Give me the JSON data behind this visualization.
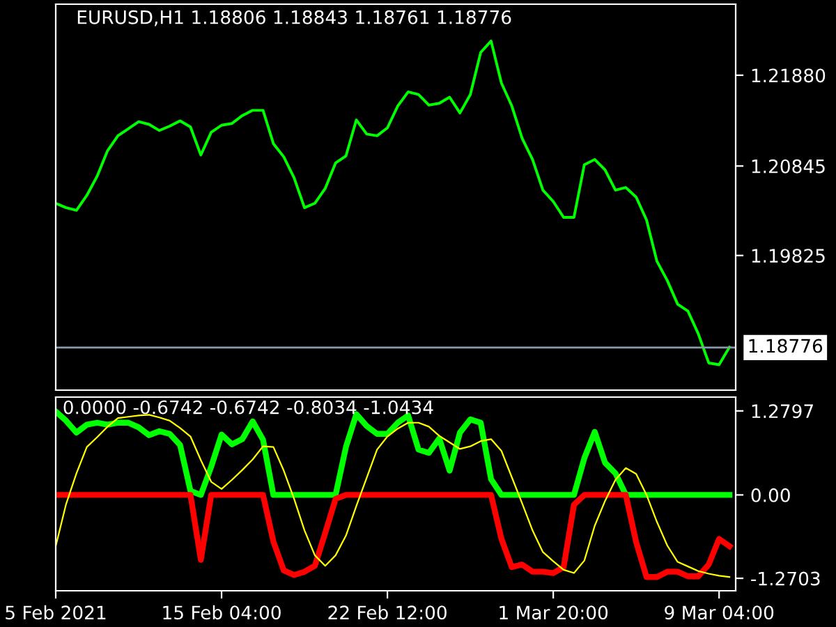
{
  "chart_data": [
    {
      "type": "line",
      "title": "EURUSD,H1 1.18806 1.18843 1.18761 1.18776",
      "tick_labels": "y",
      "grid": false,
      "categories": [
        null,
        null,
        null,
        null,
        null,
        null,
        null,
        null,
        null,
        null,
        null,
        null,
        null,
        null,
        null,
        null,
        null,
        null,
        null,
        null,
        null,
        null,
        null,
        null,
        null,
        null,
        null,
        null,
        null,
        null,
        null,
        null,
        null,
        null,
        null,
        null,
        null,
        null,
        null,
        null,
        null,
        null,
        null,
        null,
        null,
        null,
        null,
        null,
        null,
        null,
        null,
        null,
        null,
        null,
        null,
        null,
        null,
        null,
        null,
        null,
        null,
        null,
        null,
        null,
        null,
        null
      ],
      "ylim": [
        1.1829,
        1.2269
      ],
      "yticks": [
        {
          "value": 1.2188,
          "label": "1.21880"
        },
        {
          "value": 1.20845,
          "label": "1.20845"
        },
        {
          "value": 1.19825,
          "label": "1.19825"
        }
      ],
      "ref_lines": [
        {
          "axis": "y",
          "value": 1.18776,
          "label": "1.18776",
          "color": "#8899aa"
        }
      ],
      "series": [
        {
          "color": "#00ff00",
          "values": [
            1.2042,
            1.2037,
            1.2034,
            1.2051,
            1.2073,
            1.2102,
            1.2119,
            1.2127,
            1.2135,
            1.2132,
            1.2125,
            1.213,
            1.2136,
            1.2129,
            1.2097,
            1.2123,
            1.2131,
            1.2133,
            1.2142,
            1.2148,
            1.2148,
            1.211,
            1.2095,
            1.2071,
            1.2037,
            1.2042,
            1.2059,
            1.2088,
            1.2096,
            1.2137,
            1.2121,
            1.2119,
            1.2128,
            1.2153,
            1.2169,
            1.2166,
            1.2154,
            1.2156,
            1.2163,
            1.2145,
            1.2166,
            1.2214,
            1.2227,
            1.2179,
            1.2153,
            1.2116,
            1.2092,
            1.2057,
            1.2044,
            1.2026,
            1.2026,
            1.2086,
            1.2092,
            1.208,
            1.2057,
            1.206,
            1.2049,
            1.2023,
            1.1976,
            1.1954,
            1.1927,
            1.1919,
            1.1893,
            1.186,
            1.1858,
            1.1878
          ]
        }
      ]
    },
    {
      "type": "line",
      "title": "0.0000 -0.6742 -0.6742 -0.8034 -1.0434",
      "grid": false,
      "categories": [
        "5 Feb 2021",
        null,
        null,
        null,
        null,
        null,
        null,
        null,
        null,
        null,
        null,
        null,
        null,
        null,
        null,
        null,
        "15 Feb 04:00",
        null,
        null,
        null,
        null,
        null,
        null,
        null,
        null,
        null,
        null,
        null,
        null,
        null,
        null,
        null,
        "22 Feb 12:00",
        null,
        null,
        null,
        null,
        null,
        null,
        null,
        null,
        null,
        null,
        null,
        null,
        null,
        null,
        null,
        "1 Mar 20:00",
        null,
        null,
        null,
        null,
        null,
        null,
        null,
        null,
        null,
        null,
        null,
        null,
        null,
        null,
        null,
        "9 Mar 04:00",
        null
      ],
      "ylim": [
        -1.46,
        1.49
      ],
      "yticks": [
        {
          "value": 1.2797,
          "label": "1.2797"
        },
        {
          "value": 0,
          "label": "0.00"
        },
        {
          "value": -1.2703,
          "label": "-1.2703"
        }
      ],
      "series": [
        {
          "color": "#00ff00",
          "values": [
            1.27,
            1.13,
            0.95,
            1.07,
            1.1,
            1.07,
            1.1,
            1.1,
            1.03,
            0.91,
            0.97,
            0.93,
            0.76,
            0.06,
            0,
            0.43,
            0.92,
            0.77,
            0.85,
            1.12,
            0.84,
            0,
            0,
            0,
            0,
            0,
            0,
            0,
            0.73,
            1.23,
            1.05,
            0.93,
            0.93,
            1.1,
            1.21,
            0.69,
            0.64,
            0.86,
            0.37,
            0.95,
            1.15,
            1.1,
            0.24,
            0,
            0,
            0,
            0,
            0,
            0,
            0,
            0,
            0.56,
            0.96,
            0.49,
            0.33,
            0,
            0,
            0,
            0,
            0,
            0,
            0,
            0,
            0,
            0,
            0
          ]
        },
        {
          "color": "#ff0000",
          "values": [
            0,
            0,
            0,
            0,
            0,
            0,
            0,
            0,
            0,
            0,
            0,
            0,
            0,
            0,
            -0.99,
            0,
            0,
            0,
            0,
            0,
            0,
            -0.71,
            -1.15,
            -1.22,
            -1.17,
            -1.08,
            -0.58,
            -0.06,
            0,
            0,
            0,
            0,
            0,
            0,
            0,
            0,
            0,
            0,
            0,
            0,
            0,
            0,
            0,
            -0.67,
            -1.1,
            -1.06,
            -1.17,
            -1.17,
            -1.19,
            -1.1,
            -0.15,
            0,
            0,
            0,
            0,
            0,
            -0.72,
            -1.25,
            -1.25,
            -1.17,
            -1.17,
            -1.24,
            -1.24,
            -1.06,
            -0.67,
            -0.78
          ]
        },
        {
          "color": "#ffff00",
          "values": [
            -0.78,
            -0.14,
            0.33,
            0.73,
            0.88,
            1.04,
            1.17,
            1.19,
            1.21,
            1.22,
            1.18,
            1.13,
            1.02,
            0.89,
            0.53,
            0.2,
            0.09,
            0.23,
            0.38,
            0.54,
            0.74,
            0.73,
            0.37,
            -0.06,
            -0.54,
            -0.92,
            -1.08,
            -0.92,
            -0.62,
            -0.17,
            0.26,
            0.69,
            0.89,
            1.01,
            1.1,
            1.1,
            1.04,
            0.9,
            0.8,
            0.7,
            0.74,
            0.82,
            0.85,
            0.67,
            0.27,
            -0.13,
            -0.54,
            -0.87,
            -1.01,
            -1.14,
            -1.19,
            -1.0,
            -0.47,
            -0.09,
            0.23,
            0.41,
            0.32,
            0.0,
            -0.41,
            -0.77,
            -1.02,
            -1.09,
            -1.16,
            -1.2,
            -1.23,
            -1.25
          ]
        }
      ]
    }
  ]
}
